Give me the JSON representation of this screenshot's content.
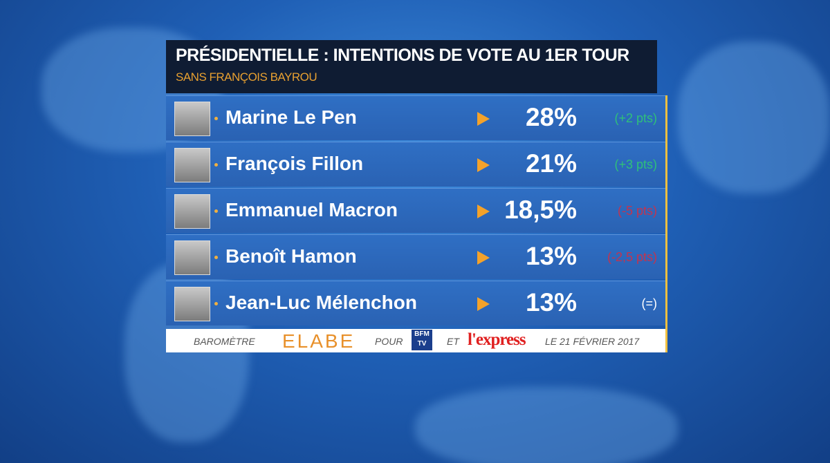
{
  "header": {
    "title": "PRÉSIDENTIELLE : INTENTIONS DE VOTE AU 1ER TOUR",
    "subtitle": "SANS FRANÇOIS BAYROU"
  },
  "rows": [
    {
      "name": "Marine Le Pen",
      "score": "28%",
      "change": "(+2 pts)",
      "change_color": "#2fc07a"
    },
    {
      "name": "François Fillon",
      "score": "21%",
      "change": "(+3 pts)",
      "change_color": "#2fc07a"
    },
    {
      "name": "Emmanuel Macron",
      "score": "18,5%",
      "change": "(-5 pts)",
      "change_color": "#c2344f"
    },
    {
      "name": "Benoît Hamon",
      "score": "13%",
      "change": "(-2,5 pts)",
      "change_color": "#c2344f"
    },
    {
      "name": "Jean-Luc Mélenchon",
      "score": "13%",
      "change": "(=)",
      "change_color": "#ffffff"
    }
  ],
  "footer": {
    "barometer": "BAROMÈTRE",
    "pollster": "ELABE",
    "for": "POUR",
    "channel": "BFM TV",
    "and": "ET",
    "magazine": "l'express",
    "date": "LE 21 FÉVRIER 2017"
  }
}
